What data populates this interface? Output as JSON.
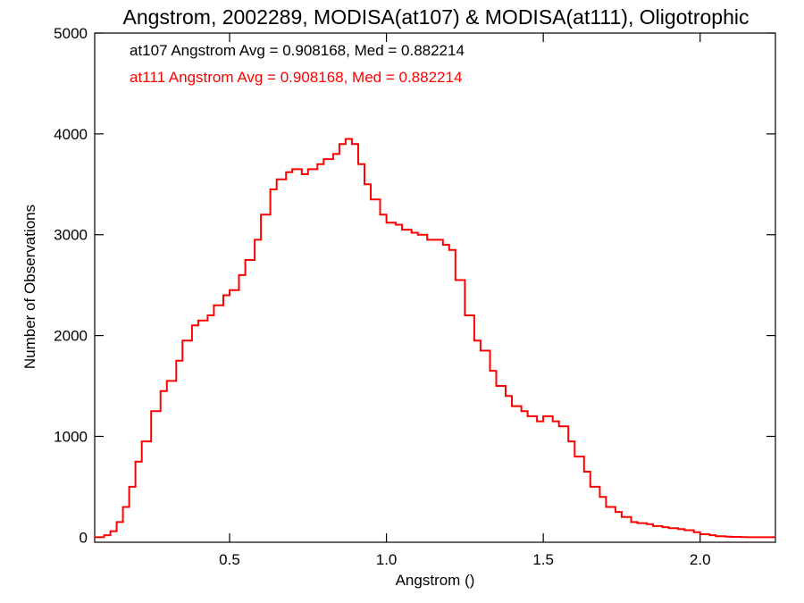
{
  "chart_data": {
    "type": "histogram",
    "title": "Angstrom, 2002289, MODISA(at107) & MODISA(at111), Oligotrophic",
    "xlabel": "Angstrom ()",
    "ylabel": "Number of Observations",
    "xlim": [
      0.07,
      2.24
    ],
    "ylim": [
      -50,
      5000
    ],
    "x_ticks": [
      0.5,
      1.0,
      1.5,
      2.0
    ],
    "x_tick_labels": [
      "0.5",
      "1.0",
      "1.5",
      "2.0"
    ],
    "y_ticks": [
      0,
      1000,
      2000,
      3000,
      4000,
      5000
    ],
    "y_tick_labels": [
      "0",
      "1000",
      "2000",
      "3000",
      "4000",
      "5000"
    ],
    "grid": false,
    "annotations": [
      {
        "text": "at107 Angstrom Avg = 0.908168, Med = 0.882214",
        "color": "#000000"
      },
      {
        "text": "at111 Angstrom Avg = 0.908168, Med = 0.882214",
        "color": "#ff0000"
      }
    ],
    "series": [
      {
        "color": "#ff0000",
        "x": [
          0.07,
          0.1,
          0.12,
          0.14,
          0.16,
          0.18,
          0.2,
          0.22,
          0.25,
          0.28,
          0.3,
          0.33,
          0.35,
          0.38,
          0.4,
          0.43,
          0.45,
          0.48,
          0.5,
          0.53,
          0.55,
          0.58,
          0.6,
          0.63,
          0.65,
          0.68,
          0.7,
          0.73,
          0.75,
          0.78,
          0.8,
          0.83,
          0.85,
          0.87,
          0.89,
          0.91,
          0.93,
          0.95,
          0.98,
          1.0,
          1.03,
          1.05,
          1.08,
          1.1,
          1.13,
          1.15,
          1.18,
          1.2,
          1.22,
          1.25,
          1.28,
          1.3,
          1.33,
          1.35,
          1.38,
          1.4,
          1.43,
          1.45,
          1.48,
          1.5,
          1.53,
          1.55,
          1.58,
          1.6,
          1.63,
          1.65,
          1.68,
          1.7,
          1.73,
          1.75,
          1.78,
          1.8,
          1.83,
          1.85,
          1.88,
          1.9,
          1.93,
          1.95,
          1.98,
          2.0,
          2.03,
          2.05,
          2.08,
          2.1,
          2.13,
          2.15,
          2.18,
          2.2,
          2.24
        ],
        "y": [
          0,
          20,
          60,
          150,
          300,
          500,
          750,
          950,
          1250,
          1450,
          1550,
          1750,
          1950,
          2100,
          2150,
          2200,
          2300,
          2400,
          2450,
          2600,
          2750,
          2950,
          3200,
          3450,
          3550,
          3620,
          3650,
          3600,
          3650,
          3700,
          3750,
          3800,
          3900,
          3950,
          3900,
          3700,
          3500,
          3350,
          3200,
          3120,
          3100,
          3050,
          3020,
          3000,
          2950,
          2950,
          2900,
          2850,
          2550,
          2200,
          1950,
          1850,
          1650,
          1500,
          1400,
          1300,
          1250,
          1200,
          1150,
          1200,
          1150,
          1100,
          950,
          800,
          650,
          500,
          400,
          300,
          250,
          200,
          150,
          140,
          130,
          110,
          100,
          90,
          80,
          70,
          50,
          30,
          20,
          10,
          5,
          3,
          1,
          0,
          0,
          0,
          0
        ]
      }
    ]
  }
}
